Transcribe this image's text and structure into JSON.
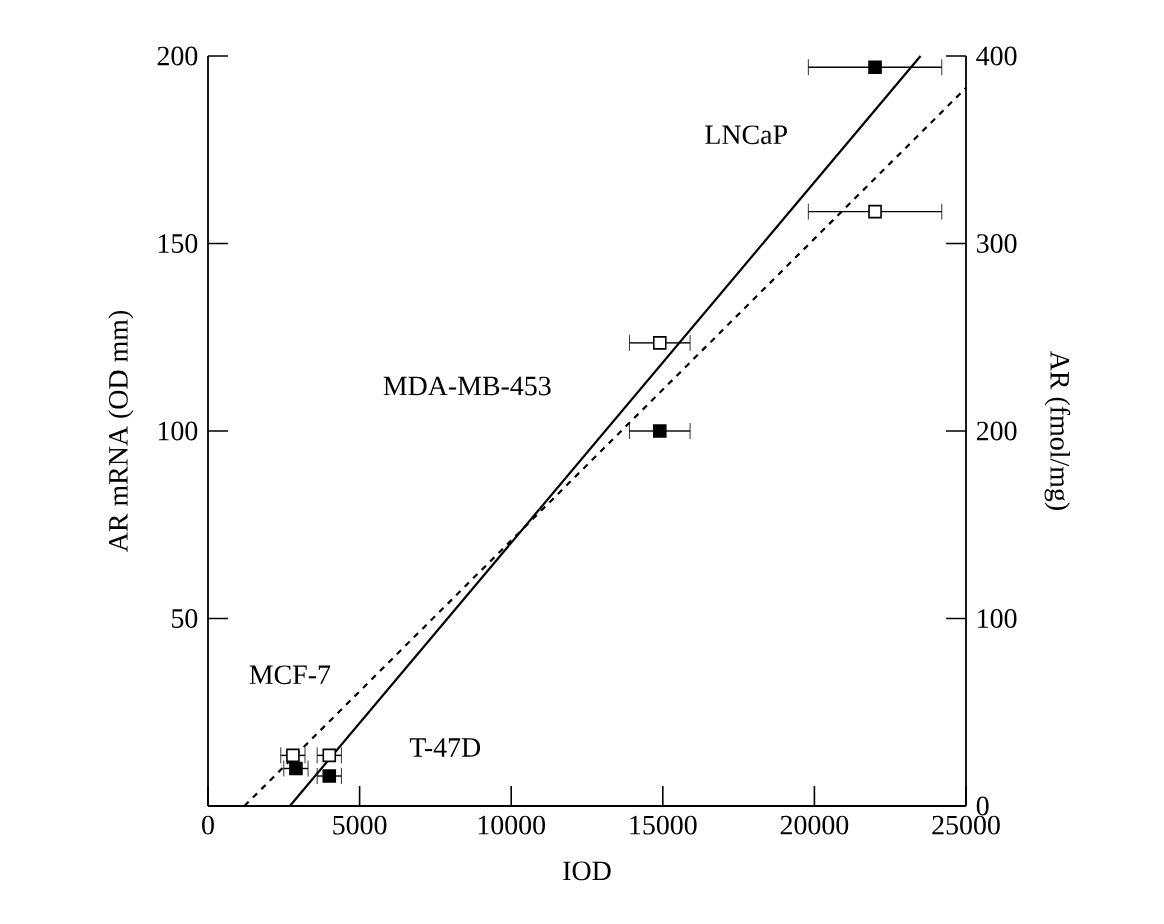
{
  "chart_data": {
    "type": "scatter",
    "xlabel": "IOD",
    "ylabel": "AR mRNA (OD mm)",
    "y2label": "AR (fmol/mg)",
    "xlim": [
      0,
      25000
    ],
    "xticks": [
      0,
      5000,
      10000,
      15000,
      20000,
      25000
    ],
    "ylim": [
      0,
      200
    ],
    "yticks": [
      50,
      100,
      150,
      200
    ],
    "y2lim": [
      0,
      400
    ],
    "y2ticks": [
      0,
      100,
      200,
      300,
      400
    ],
    "marker": "square",
    "series": [
      {
        "color": "#000000",
        "x": [
          2900,
          4000,
          14900,
          22000
        ],
        "values": [
          10,
          8,
          100,
          197
        ],
        "xerrors": [
          400,
          400,
          1000,
          2200
        ]
      },
      {
        "axis": "y2",
        "color": "#ffffff",
        "x": [
          2800,
          4000,
          14900,
          22000
        ],
        "values": [
          27,
          27,
          247,
          317
        ],
        "xerrors": [
          400,
          400,
          1000,
          2200
        ]
      },
      {
        "type": "line",
        "marker": "none",
        "line_style": "solid",
        "color": "#000000",
        "x": [
          2700,
          23500
        ],
        "values": [
          0,
          200
        ]
      },
      {
        "type": "line",
        "axis": "y2",
        "marker": "none",
        "line_style": "dashed",
        "color": "#000000",
        "x": [
          1200,
          25000
        ],
        "values": [
          0,
          383
        ]
      }
    ],
    "annotations": [
      "LNCaP",
      "MDA-MB-453",
      "MCF-7",
      "T-47D"
    ]
  }
}
